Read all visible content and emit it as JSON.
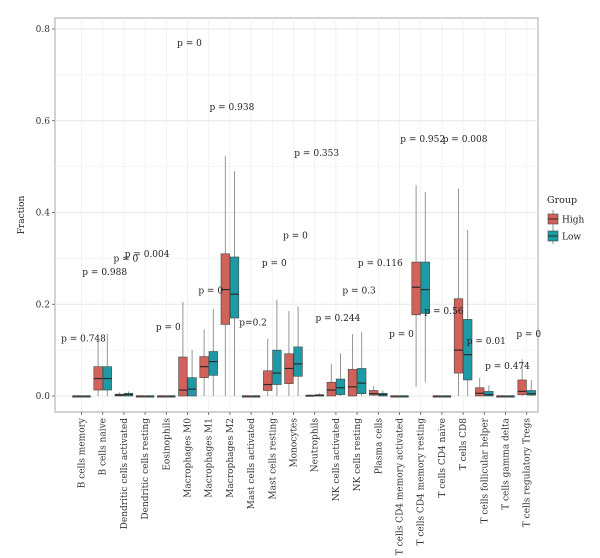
{
  "chart_data": {
    "type": "box",
    "ylabel": "Fraction",
    "ylim": [
      0,
      0.8
    ],
    "yticks": [
      0.0,
      0.2,
      0.4,
      0.6,
      0.8
    ],
    "ytick_labels": [
      "0.0",
      "0.2",
      "0.4",
      "0.6",
      "0.8"
    ],
    "grid": true,
    "legend": {
      "title": "Group",
      "position": "right",
      "entries": [
        {
          "name": "High",
          "color": "#D0625A"
        },
        {
          "name": "Low",
          "color": "#1E9AA5"
        }
      ]
    },
    "categories": [
      "B cells memory",
      "B cells naive",
      "Dendritic cells activated",
      "Dendritic cells resting",
      "Eosinophils",
      "Macrophages M0",
      "Macrophages M1",
      "Macrophages M2",
      "Mast cells activated",
      "Mast cells resting",
      "Monocytes",
      "Neutrophils",
      "NK cells activated",
      "NK cells resting",
      "Plasma cells",
      "T cells CD4 memory activated",
      "T cells CD4 memory resting",
      "T cells CD4 naive",
      "T cells CD8",
      "T cells follicular helper",
      "T cells gamma delta",
      "T cells regulatory Tregs"
    ],
    "pvalues": [
      "p = 0.748",
      "p = 0.988",
      "p = 0",
      "p = 0.004",
      "p = 0",
      "p = 0",
      "p = 0",
      "p = 0.938",
      "p=0.2",
      "p = 0",
      "p = 0",
      "p = 0.353",
      "p = 0.244",
      "p = 0.3",
      "p = 0.116",
      "p = 0",
      "p = 0.952",
      "p = 0.56",
      "p = 0.008",
      "p = 0.01",
      "p = 0.474",
      "p = 0"
    ],
    "pvalue_y": [
      0.125,
      0.27,
      0.3,
      0.31,
      0.15,
      0.77,
      0.23,
      0.63,
      0.16,
      0.29,
      0.35,
      0.53,
      0.17,
      0.23,
      0.29,
      0.135,
      0.56,
      0.185,
      0.56,
      0.12,
      0.065,
      0.135
    ],
    "series": [
      {
        "name": "High",
        "color": "#D0625A",
        "boxes": [
          {
            "q1": 0.0,
            "median": 0.0,
            "q3": 0.0,
            "whisker_low": 0.0,
            "whisker_high": 0.0
          },
          {
            "q1": 0.013,
            "median": 0.038,
            "q3": 0.064,
            "whisker_low": 0.0,
            "whisker_high": 0.13
          },
          {
            "q1": 0.0,
            "median": 0.002,
            "q3": 0.004,
            "whisker_low": 0.0,
            "whisker_high": 0.008
          },
          {
            "q1": 0.0,
            "median": 0.0,
            "q3": 0.0,
            "whisker_low": 0.0,
            "whisker_high": 0.0
          },
          {
            "q1": 0.0,
            "median": 0.0,
            "q3": 0.0,
            "whisker_low": 0.0,
            "whisker_high": 0.0
          },
          {
            "q1": 0.0,
            "median": 0.013,
            "q3": 0.085,
            "whisker_low": 0.0,
            "whisker_high": 0.205
          },
          {
            "q1": 0.04,
            "median": 0.064,
            "q3": 0.086,
            "whisker_low": 0.0,
            "whisker_high": 0.145
          },
          {
            "q1": 0.156,
            "median": 0.232,
            "q3": 0.31,
            "whisker_low": 0.0,
            "whisker_high": 0.523
          },
          {
            "q1": 0.0,
            "median": 0.0,
            "q3": 0.0,
            "whisker_low": 0.0,
            "whisker_high": 0.0
          },
          {
            "q1": 0.012,
            "median": 0.025,
            "q3": 0.055,
            "whisker_low": 0.0,
            "whisker_high": 0.125
          },
          {
            "q1": 0.027,
            "median": 0.06,
            "q3": 0.092,
            "whisker_low": 0.0,
            "whisker_high": 0.185
          },
          {
            "q1": 0.0,
            "median": 0.0,
            "q3": 0.002,
            "whisker_low": 0.0,
            "whisker_high": 0.004
          },
          {
            "q1": 0.0,
            "median": 0.013,
            "q3": 0.03,
            "whisker_low": 0.0,
            "whisker_high": 0.07
          },
          {
            "q1": 0.0,
            "median": 0.02,
            "q3": 0.058,
            "whisker_low": 0.0,
            "whisker_high": 0.135
          },
          {
            "q1": 0.002,
            "median": 0.005,
            "q3": 0.012,
            "whisker_low": 0.0,
            "whisker_high": 0.022
          },
          {
            "q1": 0.0,
            "median": 0.0,
            "q3": 0.0,
            "whisker_low": 0.0,
            "whisker_high": 0.0
          },
          {
            "q1": 0.177,
            "median": 0.237,
            "q3": 0.292,
            "whisker_low": 0.02,
            "whisker_high": 0.46
          },
          {
            "q1": 0.0,
            "median": 0.0,
            "q3": 0.0,
            "whisker_low": 0.0,
            "whisker_high": 0.0
          },
          {
            "q1": 0.05,
            "median": 0.1,
            "q3": 0.212,
            "whisker_low": 0.0,
            "whisker_high": 0.452
          },
          {
            "q1": 0.0,
            "median": 0.006,
            "q3": 0.018,
            "whisker_low": 0.0,
            "whisker_high": 0.04
          },
          {
            "q1": 0.0,
            "median": 0.0,
            "q3": 0.0,
            "whisker_low": 0.0,
            "whisker_high": 0.0
          },
          {
            "q1": 0.003,
            "median": 0.01,
            "q3": 0.035,
            "whisker_low": 0.0,
            "whisker_high": 0.08
          }
        ]
      },
      {
        "name": "Low",
        "color": "#1E9AA5",
        "boxes": [
          {
            "q1": 0.0,
            "median": 0.0,
            "q3": 0.0,
            "whisker_low": 0.0,
            "whisker_high": 0.0
          },
          {
            "q1": 0.013,
            "median": 0.038,
            "q3": 0.064,
            "whisker_low": 0.0,
            "whisker_high": 0.135
          },
          {
            "q1": 0.0,
            "median": 0.003,
            "q3": 0.006,
            "whisker_low": 0.0,
            "whisker_high": 0.01
          },
          {
            "q1": 0.0,
            "median": 0.0,
            "q3": 0.0,
            "whisker_low": 0.0,
            "whisker_high": 0.0
          },
          {
            "q1": 0.0,
            "median": 0.0,
            "q3": 0.0,
            "whisker_low": 0.0,
            "whisker_high": 0.0
          },
          {
            "q1": 0.0,
            "median": 0.015,
            "q3": 0.04,
            "whisker_low": 0.0,
            "whisker_high": 0.1
          },
          {
            "q1": 0.045,
            "median": 0.075,
            "q3": 0.097,
            "whisker_low": 0.0,
            "whisker_high": 0.19
          },
          {
            "q1": 0.17,
            "median": 0.222,
            "q3": 0.303,
            "whisker_low": 0.0,
            "whisker_high": 0.49
          },
          {
            "q1": 0.0,
            "median": 0.0,
            "q3": 0.0,
            "whisker_low": 0.0,
            "whisker_high": 0.0
          },
          {
            "q1": 0.025,
            "median": 0.05,
            "q3": 0.1,
            "whisker_low": 0.0,
            "whisker_high": 0.21
          },
          {
            "q1": 0.043,
            "median": 0.07,
            "q3": 0.107,
            "whisker_low": 0.0,
            "whisker_high": 0.195
          },
          {
            "q1": 0.0,
            "median": 0.001,
            "q3": 0.003,
            "whisker_low": 0.0,
            "whisker_high": 0.006
          },
          {
            "q1": 0.003,
            "median": 0.018,
            "q3": 0.037,
            "whisker_low": 0.0,
            "whisker_high": 0.093
          },
          {
            "q1": 0.005,
            "median": 0.028,
            "q3": 0.06,
            "whisker_low": 0.0,
            "whisker_high": 0.14
          },
          {
            "q1": 0.0,
            "median": 0.003,
            "q3": 0.006,
            "whisker_low": 0.0,
            "whisker_high": 0.012
          },
          {
            "q1": 0.0,
            "median": 0.0,
            "q3": 0.0,
            "whisker_low": 0.0,
            "whisker_high": 0.0
          },
          {
            "q1": 0.18,
            "median": 0.232,
            "q3": 0.292,
            "whisker_low": 0.03,
            "whisker_high": 0.445
          },
          {
            "q1": 0.0,
            "median": 0.0,
            "q3": 0.0,
            "whisker_low": 0.0,
            "whisker_high": 0.0
          },
          {
            "q1": 0.035,
            "median": 0.09,
            "q3": 0.167,
            "whisker_low": 0.0,
            "whisker_high": 0.362
          },
          {
            "q1": 0.0,
            "median": 0.003,
            "q3": 0.01,
            "whisker_low": 0.0,
            "whisker_high": 0.023
          },
          {
            "q1": 0.0,
            "median": 0.0,
            "q3": 0.0,
            "whisker_low": 0.0,
            "whisker_high": 0.0
          },
          {
            "q1": 0.002,
            "median": 0.005,
            "q3": 0.012,
            "whisker_low": 0.0,
            "whisker_high": 0.035
          }
        ]
      }
    ]
  }
}
